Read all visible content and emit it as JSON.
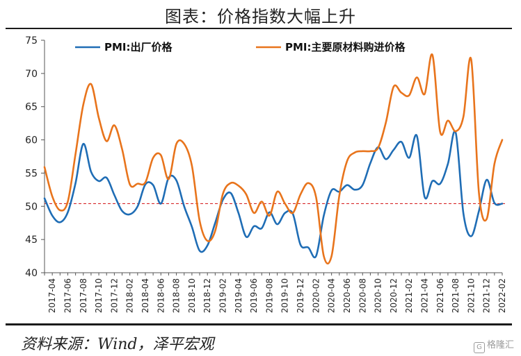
{
  "title": "图表：价格指数大幅上升",
  "source": "资料来源：Wind，泽平宏观",
  "watermark": "格隆汇",
  "colors": {
    "series1": "#1f6db5",
    "series2": "#e8741c",
    "reference": "#d62728"
  },
  "chart_data": {
    "type": "line",
    "ylim": [
      40,
      75
    ],
    "yticks": [
      40,
      45,
      50,
      55,
      60,
      65,
      70,
      75
    ],
    "reference_line": 50.4,
    "legend_position": "top",
    "x": [
      "2017-03",
      "2017-04",
      "2017-05",
      "2017-06",
      "2017-07",
      "2017-08",
      "2017-09",
      "2017-10",
      "2017-11",
      "2017-12",
      "2018-01",
      "2018-02",
      "2018-03",
      "2018-04",
      "2018-05",
      "2018-06",
      "2018-07",
      "2018-08",
      "2018-09",
      "2018-10",
      "2018-11",
      "2018-12",
      "2019-01",
      "2019-02",
      "2019-03",
      "2019-04",
      "2019-05",
      "2019-06",
      "2019-07",
      "2019-08",
      "2019-09",
      "2019-10",
      "2019-11",
      "2019-12",
      "2020-01",
      "2020-02",
      "2020-03",
      "2020-04",
      "2020-05",
      "2020-06",
      "2020-07",
      "2020-08",
      "2020-09",
      "2020-10",
      "2020-11",
      "2020-12",
      "2021-01",
      "2021-02",
      "2021-03",
      "2021-04",
      "2021-05",
      "2021-06",
      "2021-07",
      "2021-08",
      "2021-09",
      "2021-10",
      "2021-11",
      "2021-12",
      "2022-01",
      "2022-02"
    ],
    "xtick_labels": [
      "2017-04",
      "2017-06",
      "2017-08",
      "2017-10",
      "2017-12",
      "2018-02",
      "2018-04",
      "2018-06",
      "2018-08",
      "2018-10",
      "2018-12",
      "2019-02",
      "2019-04",
      "2019-06",
      "2019-08",
      "2019-10",
      "2019-12",
      "2020-02",
      "2020-04",
      "2020-06",
      "2020-08",
      "2020-10",
      "2020-12",
      "2021-02",
      "2021-04",
      "2021-06",
      "2021-08",
      "2021-10",
      "2021-12",
      "2022-02"
    ],
    "series": [
      {
        "name": "PMI:出厂价格",
        "values": [
          51.2,
          48.6,
          47.6,
          49.1,
          53.5,
          59.4,
          55.2,
          53.8,
          54.3,
          51.7,
          49.3,
          48.8,
          50.0,
          53.3,
          53.2,
          50.4,
          54.3,
          53.9,
          50.0,
          46.9,
          43.3,
          44.1,
          47.5,
          51.0,
          52.0,
          49.0,
          45.4,
          47.0,
          46.7,
          49.1,
          47.3,
          49.0,
          48.9,
          44.2,
          43.8,
          42.5,
          48.6,
          52.4,
          52.2,
          53.2,
          52.5,
          53.2,
          56.5,
          58.9,
          57.1,
          58.5,
          59.7,
          57.3,
          60.6,
          51.4,
          53.8,
          53.4,
          56.4,
          61.1,
          48.9,
          45.5,
          49.3,
          54.0,
          50.5,
          50.4
        ]
      },
      {
        "name": "PMI:主要原材料购进价格",
        "values": [
          55.9,
          51.5,
          49.4,
          50.7,
          57.9,
          65.3,
          68.4,
          63.3,
          59.8,
          62.2,
          58.6,
          53.3,
          53.4,
          53.6,
          57.3,
          57.7,
          54.1,
          59.4,
          59.4,
          56.1,
          47.8,
          44.8,
          46.3,
          51.9,
          53.5,
          53.1,
          51.8,
          49.0,
          50.7,
          48.6,
          52.2,
          50.4,
          49.0,
          51.8,
          53.5,
          51.4,
          42.5,
          42.5,
          51.6,
          56.8,
          58.1,
          58.3,
          58.3,
          58.8,
          62.6,
          68.0,
          67.1,
          66.7,
          69.4,
          66.9,
          72.8,
          61.2,
          62.9,
          61.3,
          63.5,
          72.1,
          52.0,
          48.1,
          56.4,
          60.0
        ]
      }
    ]
  }
}
